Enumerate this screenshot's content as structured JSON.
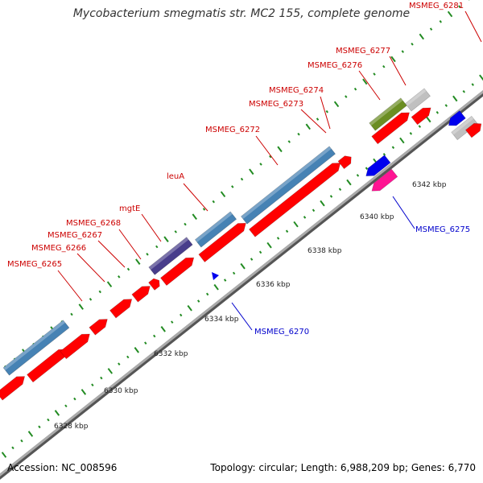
{
  "title": "Mycobacterium smegmatis str. MC2 155, complete genome",
  "footer": {
    "accession": "Accession: NC_008596",
    "summary": "Topology: circular; Length: 6,988,209 bp; Genes: 6,770"
  },
  "colors": {
    "forward_label": "#cc0000",
    "reverse_label": "#0000cc",
    "cds": "#ff0000",
    "gene_blue": "#4682b4",
    "gene_purple": "#483d8b",
    "gene_olive": "#6b8e23",
    "gene_grey": "#c0c0c0",
    "gene_navy": "#0000ee",
    "gene_pink": "#ff1493",
    "backbone": "#888888",
    "tick": "#228b22"
  },
  "kbp_ticks": [
    "6328 kbp",
    "6330 kbp",
    "6332 kbp",
    "6334 kbp",
    "6336 kbp",
    "6338 kbp",
    "6340 kbp",
    "6342 kbp"
  ],
  "gene_labels_forward": [
    "MSMEG_6265",
    "MSMEG_6266",
    "MSMEG_6267",
    "MSMEG_6268",
    "mgtE",
    "leuA",
    "MSMEG_6272",
    "MSMEG_6273",
    "MSMEG_6274",
    "MSMEG_6276",
    "MSMEG_6277",
    "MSMEG_6281"
  ],
  "gene_labels_reverse": [
    "MSMEG_6270",
    "MSMEG_6275"
  ]
}
